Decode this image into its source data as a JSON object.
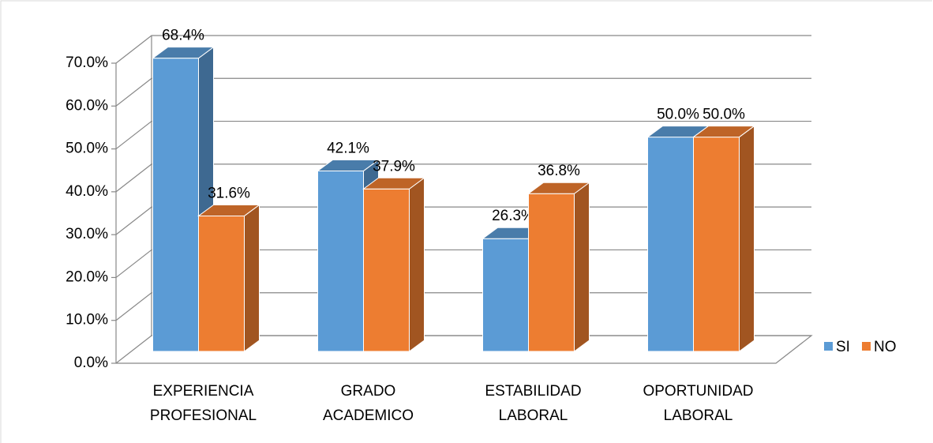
{
  "chart_data": {
    "type": "bar3d",
    "categories": [
      "EXPERIENCIA PROFESIONAL",
      "GRADO ACADEMICO",
      "ESTABILIDAD LABORAL",
      "OPORTUNIDAD LABORAL"
    ],
    "series": [
      {
        "name": "SI",
        "color": "#5b9bd5",
        "values": [
          68.4,
          42.1,
          26.3,
          50.0
        ],
        "value_labels": [
          "68.4%",
          "42.1%",
          "26.3%",
          "50.0%"
        ]
      },
      {
        "name": "NO",
        "color": "#ed7d31",
        "values": [
          31.6,
          37.9,
          36.8,
          50.0
        ],
        "value_labels": [
          "31.6%",
          "37.9%",
          "36.8%",
          "50.0%"
        ]
      }
    ],
    "ylim": [
      0,
      70
    ],
    "yticks": [
      {
        "value": 0,
        "label": "0.0%"
      },
      {
        "value": 10,
        "label": "10.0%"
      },
      {
        "value": 20,
        "label": "20.0%"
      },
      {
        "value": 30,
        "label": "30.0%"
      },
      {
        "value": 40,
        "label": "40.0%"
      },
      {
        "value": 50,
        "label": "50.0%"
      },
      {
        "value": 60,
        "label": "60.0%"
      },
      {
        "value": 70,
        "label": "70.0%"
      }
    ],
    "grid": true,
    "legend": "right"
  }
}
